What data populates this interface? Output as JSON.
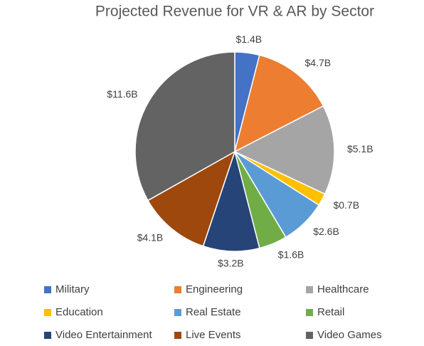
{
  "chart_data": {
    "type": "pie",
    "title": "Projected Revenue for VR & AR by Sector",
    "categories": [
      "Military",
      "Engineering",
      "Healthcare",
      "Education",
      "Real Estate",
      "Retail",
      "Video Entertainment",
      "Live Events",
      "Video Games"
    ],
    "values": [
      1.4,
      4.7,
      5.1,
      0.7,
      2.6,
      1.6,
      3.2,
      4.1,
      11.6
    ],
    "value_labels": [
      "$1.4B",
      "$4.7B",
      "$5.1B",
      "$0.7B",
      "$2.6B",
      "$1.6B",
      "$3.2B",
      "$4.1B",
      "$11.6B"
    ],
    "colors": [
      "#4472c4",
      "#ed7d31",
      "#a5a5a5",
      "#ffc000",
      "#5b9bd5",
      "#70ad47",
      "#264478",
      "#9e480e",
      "#636363"
    ],
    "legend": "bottom"
  }
}
